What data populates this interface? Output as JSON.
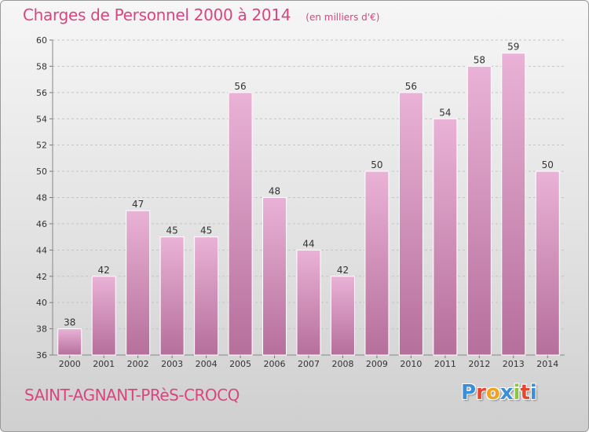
{
  "header": {
    "title": "Charges de Personnel 2000 à 2014",
    "subtitle": "(en milliers d'€)"
  },
  "footer": {
    "commune": "SAINT-AGNANT-PRèS-CROCQ",
    "logo_text": "Proxiti"
  },
  "colors": {
    "accent": "#d9457f",
    "bar_top": "#eab2d6",
    "bar_bottom": "#b56f9b",
    "logo": [
      "#3b8fd6",
      "#e8452e",
      "#f2a21c",
      "#3b8fd6",
      "#8cc63f",
      "#e8452e",
      "#3b8fd6"
    ]
  },
  "chart_data": {
    "type": "bar",
    "categories": [
      "2000",
      "2001",
      "2002",
      "2003",
      "2004",
      "2005",
      "2006",
      "2007",
      "2008",
      "2009",
      "2010",
      "2011",
      "2012",
      "2013",
      "2014"
    ],
    "values": [
      38,
      42,
      47,
      45,
      45,
      56,
      48,
      44,
      42,
      50,
      56,
      54,
      58,
      59,
      50
    ],
    "data_labels": [
      "38",
      "42",
      "47",
      "45",
      "45",
      "56",
      "48",
      "44",
      "42",
      "50",
      "56",
      "54",
      "58",
      "59",
      "50"
    ],
    "title": "Charges de Personnel 2000 à 2014",
    "xlabel": "",
    "ylabel": "",
    "ylim": [
      36,
      60
    ],
    "yticks": [
      "36",
      "38",
      "40",
      "42",
      "44",
      "46",
      "48",
      "50",
      "52",
      "54",
      "56",
      "58",
      "60"
    ],
    "grid": true
  }
}
